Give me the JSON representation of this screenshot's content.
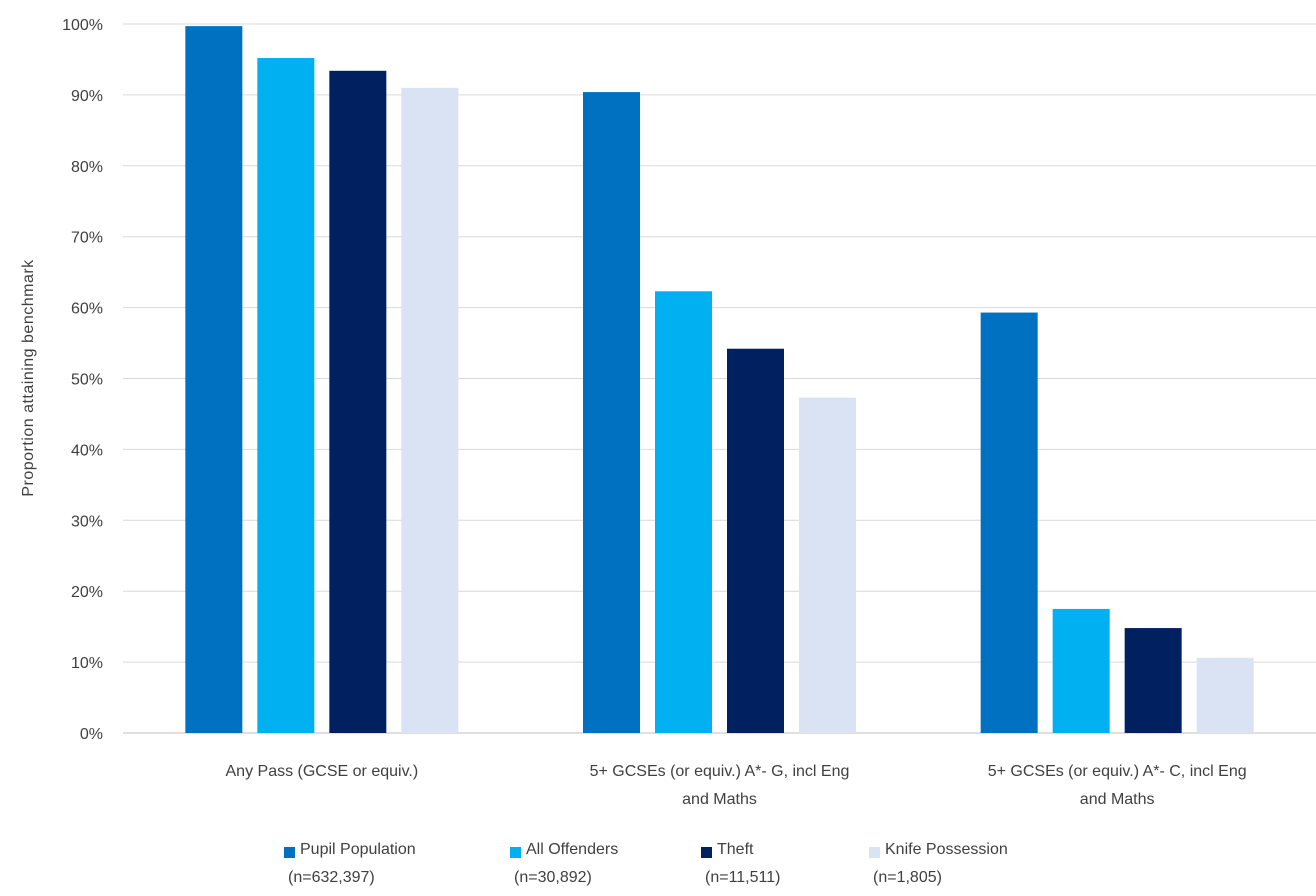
{
  "chart_data": {
    "type": "bar",
    "title": "",
    "xlabel": "",
    "ylabel": "Proportion attaining benchmark",
    "ylim": [
      0,
      100
    ],
    "y_ticks": [
      "0%",
      "10%",
      "20%",
      "30%",
      "40%",
      "50%",
      "60%",
      "70%",
      "80%",
      "90%",
      "100%"
    ],
    "grid": true,
    "legend_position": "bottom",
    "categories": [
      [
        "Any Pass (GCSE or equiv.)"
      ],
      [
        "5+ GCSEs (or equiv.) A*- G, incl Eng",
        "and Maths"
      ],
      [
        "5+ GCSEs (or equiv.) A*- C, incl Eng",
        "and Maths"
      ]
    ],
    "series": [
      {
        "name": "Pupil Population",
        "n_label": "(n=632,397)",
        "color": "#0070C0",
        "values": [
          99.7,
          90.4,
          59.3
        ]
      },
      {
        "name": "All Offenders",
        "n_label": "(n=30,892)",
        "color": "#00B0F0",
        "values": [
          95.2,
          62.3,
          17.5
        ]
      },
      {
        "name": "Theft",
        "n_label": "(n=11,511)",
        "color": "#002060",
        "values": [
          93.4,
          54.2,
          14.8
        ]
      },
      {
        "name": "Knife Possession",
        "n_label": "(n=1,805)",
        "color": "#DAE3F3",
        "values": [
          91.0,
          47.3,
          10.6
        ]
      }
    ]
  }
}
